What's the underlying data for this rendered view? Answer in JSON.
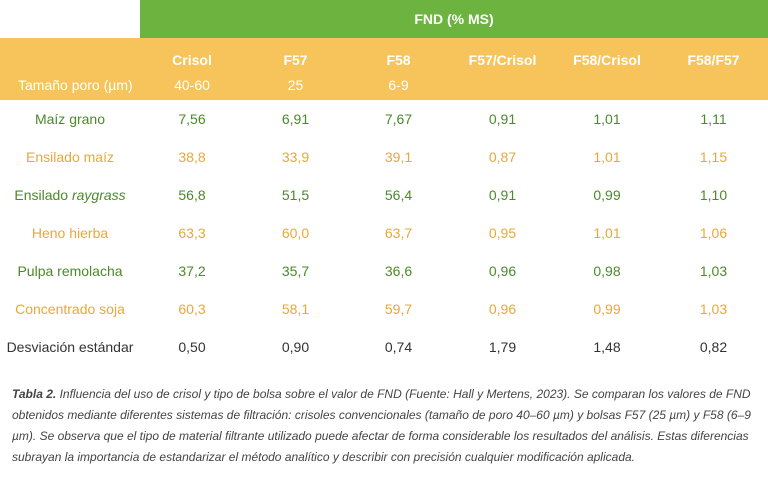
{
  "table": {
    "group_header": "FND (% MS)",
    "columns": [
      "Crisol",
      "F57",
      "F58",
      "F57/Crisol",
      "F58/Crisol",
      "F58/F57"
    ],
    "pore_label": "Tamaño poro (µm)",
    "pore_sizes": [
      "40-60",
      "25",
      "6-9",
      "",
      "",
      ""
    ],
    "rows": [
      {
        "name": "Maíz grano",
        "name_italic": "",
        "values": [
          "7,56",
          "6,91",
          "7,67",
          "0,91",
          "1,01",
          "1,11"
        ]
      },
      {
        "name": "Ensilado maíz",
        "name_italic": "",
        "values": [
          "38,8",
          "33,9",
          "39,1",
          "0,87",
          "1,01",
          "1,15"
        ]
      },
      {
        "name": "Ensilado ",
        "name_italic": "raygrass",
        "values": [
          "56,8",
          "51,5",
          "56,4",
          "0,91",
          "0,99",
          "1,10"
        ]
      },
      {
        "name": "Heno hierba",
        "name_italic": "",
        "values": [
          "63,3",
          "60,0",
          "63,7",
          "0,95",
          "1,01",
          "1,06"
        ]
      },
      {
        "name": "Pulpa remolacha",
        "name_italic": "",
        "values": [
          "37,2",
          "35,7",
          "36,6",
          "0,96",
          "0,98",
          "1,03"
        ]
      },
      {
        "name": "Concentrado soja",
        "name_italic": "",
        "values": [
          "60,3",
          "58,1",
          "59,7",
          "0,96",
          "0,99",
          "1,03"
        ]
      },
      {
        "name": "Desviación estándar",
        "name_italic": "",
        "values": [
          "0,50",
          "0,90",
          "0,74",
          "1,79",
          "1,48",
          "0,82"
        ]
      }
    ]
  },
  "caption": {
    "label": "Tabla 2.",
    "text": " Influencia del uso de crisol y tipo de bolsa sobre el valor de FND (Fuente: Hall y Mertens, 2023). Se comparan los valores de FND obtenidos mediante diferentes sistemas de filtración: crisoles convencionales (tamaño de poro 40–60 µm) y bolsas F57 (25 µm) y F58 (6–9 µm). Se observa que el tipo de material filtrante utilizado puede afectar de forma considerable los resultados del análisis. Estas diferencias subrayan la importancia de estandarizar el método analítico y describir con precisión cualquier modificación aplicada."
  },
  "colors": {
    "green": "#6db33f",
    "orange": "#f6c45a",
    "green_text": "#4a8a2a",
    "orange_text": "#e8a83a"
  }
}
